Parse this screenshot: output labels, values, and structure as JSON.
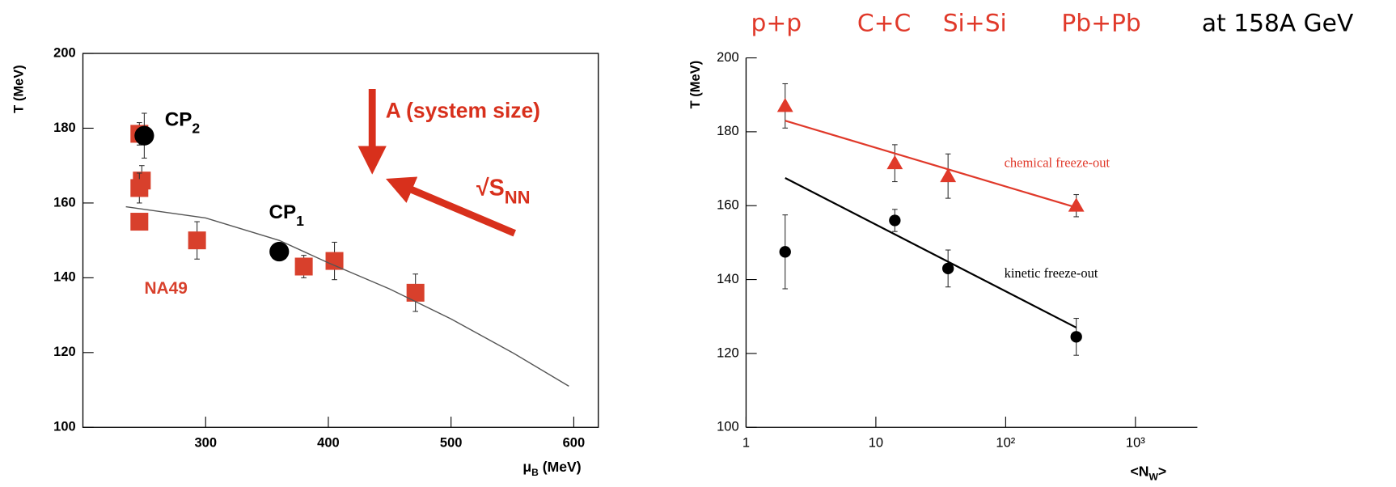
{
  "chart_data": [
    {
      "type": "scatter",
      "y_label": {
        "text": "T (MeV)"
      },
      "x_label": {
        "text": "μ",
        "sub": "B",
        "tail": " (MeV)"
      },
      "xlim": [
        200,
        620
      ],
      "xticks": [
        300,
        400,
        500,
        600
      ],
      "ylim": [
        100,
        200
      ],
      "yticks": [
        100,
        120,
        140,
        160,
        180,
        200
      ],
      "series": [
        {
          "name": "NA49",
          "marker": "square",
          "color": "#d8402c",
          "x": [
            246,
            248,
            246,
            246,
            293,
            380,
            405,
            471
          ],
          "values": [
            178.5,
            166,
            164,
            155,
            150,
            143,
            144.5,
            136
          ],
          "yerr": [
            3,
            4,
            4,
            2,
            5,
            3,
            5,
            5
          ]
        },
        {
          "marker": "circle",
          "color": "#000000",
          "x": [
            250,
            360
          ],
          "values": [
            178,
            147
          ],
          "yerr": [
            6,
            2
          ]
        },
        {
          "type": "line",
          "color": "#555555",
          "x": [
            235,
            300,
            360,
            400,
            450,
            500,
            550,
            596
          ],
          "values": [
            159,
            156,
            150,
            144,
            137,
            129,
            120,
            111
          ]
        }
      ],
      "annotations": [
        {
          "text": "CP",
          "sub": "2"
        },
        {
          "text": "CP",
          "sub": "1"
        },
        {
          "text": "A (system size)"
        },
        {
          "text": "√S",
          "sub": "NN"
        }
      ]
    },
    {
      "type": "scatter",
      "xlog": true,
      "y_label": {
        "text": "T (MeV)"
      },
      "x_label": {
        "text": "<N",
        "sub": "W",
        "tail": ">"
      },
      "xlim": [
        1,
        3000
      ],
      "xticks": [
        1,
        10,
        {
          "value": 100,
          "label": "10²"
        },
        {
          "value": 1000,
          "label": "10³"
        }
      ],
      "ylim": [
        100,
        200
      ],
      "yticks": [
        100,
        120,
        140,
        160,
        180,
        200
      ],
      "series": [
        {
          "marker": "triangle",
          "color": "#e0392a",
          "x": [
            2,
            14,
            36,
            350
          ],
          "values": [
            187,
            171.5,
            168,
            160
          ],
          "yerr": [
            6,
            5,
            6,
            3
          ]
        },
        {
          "marker": "circle",
          "color": "#000000",
          "x": [
            2,
            14,
            36,
            350
          ],
          "values": [
            147.5,
            156,
            143,
            124.5
          ],
          "yerr": [
            10,
            3,
            5,
            5
          ]
        },
        {
          "type": "line",
          "name": "chemical freeze-out",
          "color": "#e0392a",
          "x": [
            2,
            350
          ],
          "values": [
            183,
            159.5
          ]
        },
        {
          "type": "line",
          "name": "kinetic freeze-out",
          "color": "#000000",
          "x": [
            2,
            350
          ],
          "values": [
            167.5,
            127
          ]
        }
      ],
      "annotations": [
        {
          "text": "p+p"
        },
        {
          "text": "C+C"
        },
        {
          "text": "Si+Si"
        },
        {
          "text": "Pb+Pb"
        },
        {
          "text": "at 158A GeV"
        }
      ]
    }
  ]
}
